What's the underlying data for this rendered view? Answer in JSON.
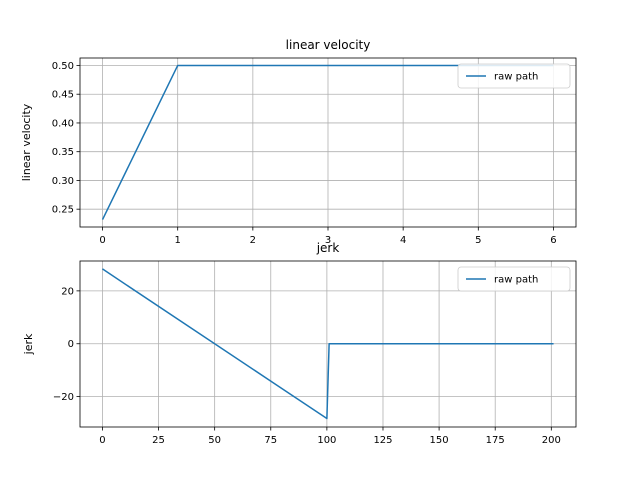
{
  "chart_data": [
    {
      "type": "line",
      "title": "linear velocity",
      "xlabel": "",
      "ylabel": "linear velocity",
      "xlim": [
        -0.3,
        6.3
      ],
      "ylim": [
        0.219,
        0.513
      ],
      "xticks": [
        0,
        1,
        2,
        3,
        4,
        5,
        6
      ],
      "yticks": [
        0.25,
        0.3,
        0.35,
        0.4,
        0.45,
        0.5
      ],
      "ytick_labels": [
        "0.25",
        "0.30",
        "0.35",
        "0.40",
        "0.45",
        "0.50"
      ],
      "grid": true,
      "legend_placement": "top-right",
      "series": [
        {
          "name": "raw path",
          "color": "#1f77b4",
          "x": [
            0,
            1,
            6
          ],
          "y": [
            0.232,
            0.5,
            0.5
          ]
        }
      ]
    },
    {
      "type": "line",
      "title": "jerk",
      "xlabel": "",
      "ylabel": "jerk",
      "xlim": [
        -10,
        211
      ],
      "ylim": [
        -31.5,
        31.3
      ],
      "xticks": [
        0,
        25,
        50,
        75,
        100,
        125,
        150,
        175,
        200
      ],
      "yticks": [
        -20,
        0,
        20
      ],
      "ytick_labels": [
        "−20",
        "0",
        "20"
      ],
      "grid": true,
      "legend_placement": "top-right",
      "series": [
        {
          "name": "raw path",
          "color": "#1f77b4",
          "x": [
            0,
            100,
            101,
            201
          ],
          "y": [
            28.3,
            -28.3,
            0,
            0
          ]
        }
      ]
    }
  ]
}
